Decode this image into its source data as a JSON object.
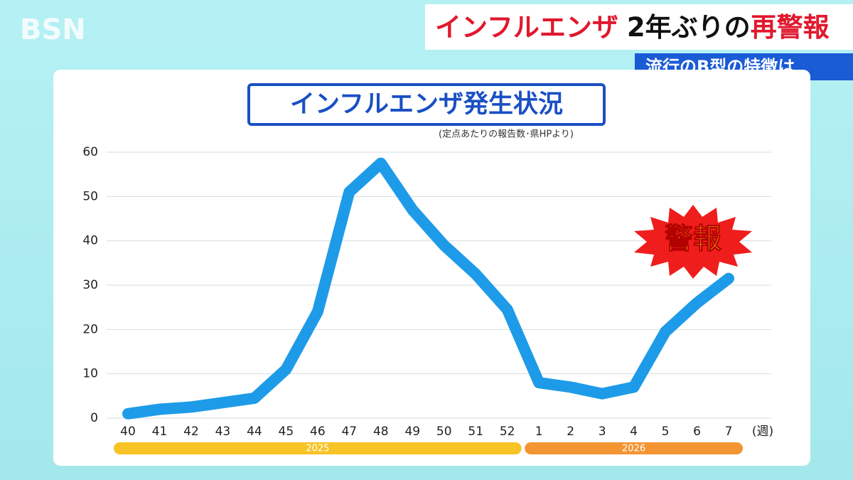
{
  "logo": "BSN",
  "headline": [
    "インフルエンザ",
    "2年ぶりの",
    "再警報"
  ],
  "subheadline": "流行のB型の特徴は",
  "chart_data": {
    "type": "line",
    "title": "インフルエンザ発生状況",
    "subtitle": "(定点あたりの報告数･県HPより)",
    "x_label": "(週)",
    "categories": [
      "40",
      "41",
      "42",
      "43",
      "44",
      "45",
      "46",
      "47",
      "48",
      "49",
      "50",
      "51",
      "52",
      "1",
      "2",
      "3",
      "4",
      "5",
      "6",
      "7"
    ],
    "values": [
      1,
      2,
      2.5,
      3.5,
      4.5,
      11,
      24,
      51,
      57.5,
      47,
      39,
      32.5,
      24.5,
      8,
      7,
      5.5,
      7,
      19.5,
      26,
      31.5
    ],
    "color": "#1e9be8",
    "ylim": [
      0,
      60
    ],
    "yticks": [
      0,
      10,
      20,
      30,
      40,
      50,
      60
    ],
    "grid": true,
    "periods": [
      {
        "label": "2025",
        "color": "#f7c325",
        "start": "40",
        "end": "52"
      },
      {
        "label": "2026",
        "color": "#f39533",
        "start": "1",
        "end": "7"
      }
    ],
    "badge": "警報"
  }
}
